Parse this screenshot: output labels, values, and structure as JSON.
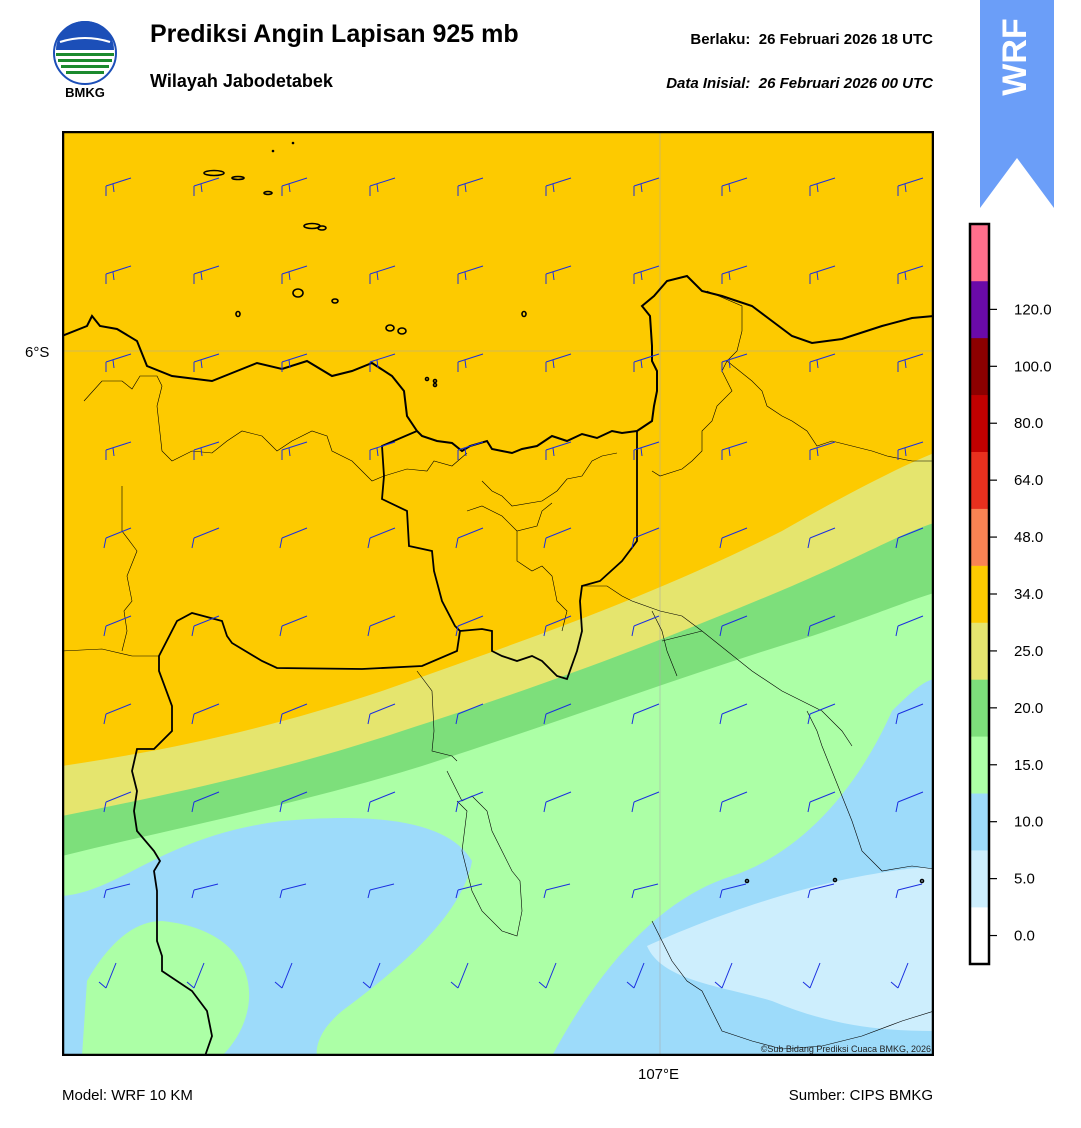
{
  "header": {
    "title": "Prediksi Angin Lapisan 925 mb",
    "subtitle": "Wilayah Jabodetabek",
    "valid_label": "Berlaku:",
    "valid_time": "26 Februari 2026 18 UTC",
    "init_label": "Data Inisial:",
    "init_time": "26 Februari 2026 00 UTC"
  },
  "logo": {
    "icon": "bmkg-logo-icon",
    "text": "BMKG"
  },
  "badge": {
    "text": "WRF",
    "color": "#6b9ef8"
  },
  "map": {
    "lat_label": "6°S",
    "lon_label": "107°E",
    "copyright": "©Sub Bidang Prediksi Cuaca BMKG, 2026",
    "wind_barb_color": "#1a2fe0"
  },
  "footer": {
    "model": "Model: WRF 10 KM",
    "source": "Sumber: CIPS BMKG"
  },
  "colorbar": {
    "colors": [
      "#ffffff",
      "#cdeefd",
      "#9ddbfa",
      "#acffa6",
      "#7ddf7b",
      "#e5e56e",
      "#fdca00",
      "#f98353",
      "#e8301e",
      "#c10000",
      "#8c0000",
      "#6a0aa8",
      "#ff6f8c"
    ],
    "labels": [
      "0.0",
      "5.0",
      "10.0",
      "15.0",
      "20.0",
      "25.0",
      "34.0",
      "48.0",
      "64.0",
      "80.0",
      "100.0",
      "120.0"
    ]
  }
}
